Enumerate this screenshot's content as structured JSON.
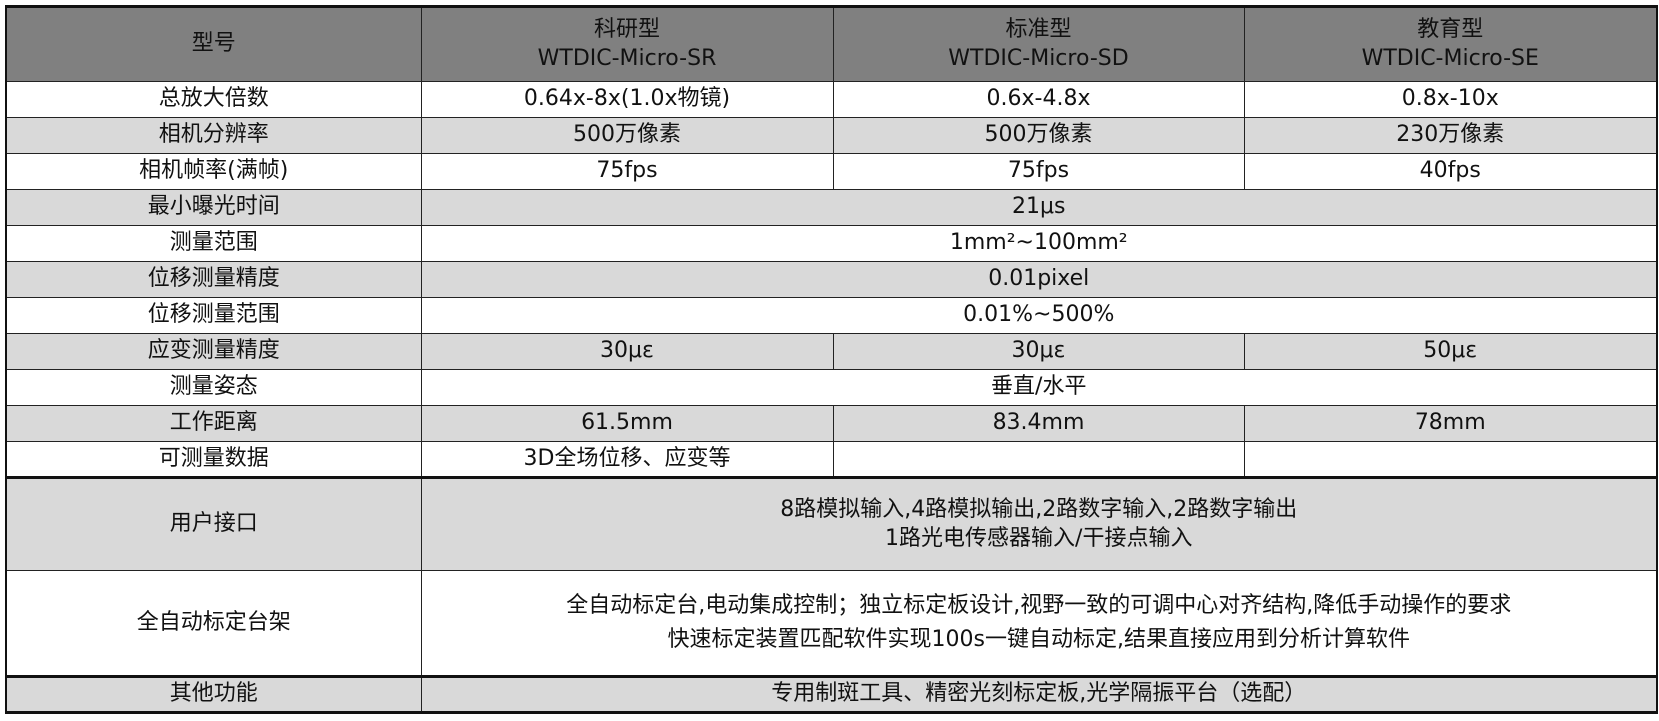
{
  "header": {
    "label": "型号",
    "models": [
      {
        "name": "科研型",
        "code": "WTDIC-Micro-SR"
      },
      {
        "name": "标准型",
        "code": "WTDIC-Micro-SD"
      },
      {
        "name": "教育型",
        "code": "WTDIC-Micro-SE"
      }
    ]
  },
  "rows": [
    {
      "label": "总放大倍数",
      "values": [
        "0.64x-8x(1.0x物镜)",
        "0.6x-4.8x",
        "0.8x-10x"
      ]
    },
    {
      "label": "相机分辨率",
      "values": [
        "500万像素",
        "500万像素",
        "230万像素"
      ]
    },
    {
      "label": "相机帧率(满帧)",
      "values": [
        "75fps",
        "75fps",
        "40fps"
      ]
    },
    {
      "label": "最小曝光时间",
      "value": "21μs"
    },
    {
      "label": "测量范围",
      "value": "1mm²~100mm²"
    },
    {
      "label": "位移测量精度",
      "value": "0.01pixel"
    },
    {
      "label": "位移测量范围",
      "value": "0.01%~500%"
    },
    {
      "label": "应变测量精度",
      "values": [
        "30με",
        "30με",
        "50με"
      ]
    },
    {
      "label": "测量姿态",
      "value": "垂直/水平"
    },
    {
      "label": "工作距离",
      "values": [
        "61.5mm",
        "83.4mm",
        "78mm"
      ]
    },
    {
      "label": "可测量数据",
      "values": [
        "3D全场位移、应变等",
        "",
        ""
      ]
    },
    {
      "label": "用户接口",
      "lines": [
        "8路模拟输入,4路模拟输出,2路数字输入,2路数字输出",
        "1路光电传感器输入/干接点输入"
      ]
    },
    {
      "label": "全自动标定台架",
      "lines": [
        "全自动标定台,电动集成控制；独立标定板设计,视野一致的可调中心对齐结构,降低手动操作的要求",
        "快速标定装置匹配软件实现100s一键自动标定,结果直接应用到分析计算软件"
      ]
    },
    {
      "label": "其他功能",
      "value": "专用制斑工具、精密光刻标定板,光学隔振平台（选配）"
    }
  ],
  "colors": {
    "header_bg": "#808080",
    "alt_row_bg": "#d9d9d9"
  }
}
